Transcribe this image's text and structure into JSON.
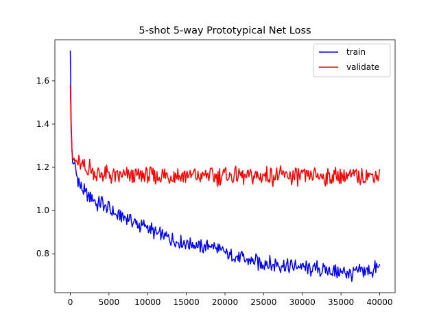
{
  "chart_data": {
    "type": "line",
    "title": "5-shot 5-way Prototypical Net Loss",
    "xlabel": "",
    "ylabel": "",
    "xlim": [
      -2000,
      42000
    ],
    "ylim": [
      0.62,
      1.79
    ],
    "xticks": [
      0,
      5000,
      10000,
      15000,
      20000,
      25000,
      30000,
      35000,
      40000
    ],
    "xtick_labels": [
      "0",
      "5000",
      "10000",
      "15000",
      "20000",
      "25000",
      "30000",
      "35000",
      "40000"
    ],
    "yticks": [
      0.8,
      1.0,
      1.2,
      1.4,
      1.6
    ],
    "ytick_labels": [
      "0.8",
      "1.0",
      "1.2",
      "1.4",
      "1.6"
    ],
    "grid": false,
    "legend_position": "top-right",
    "series": [
      {
        "name": "train",
        "color": "#0000ff",
        "x": [
          0,
          100,
          200,
          300,
          500,
          800,
          1200,
          1600,
          2000,
          2500,
          3000,
          3500,
          4000,
          4500,
          5000,
          5500,
          6000,
          7000,
          8000,
          9000,
          10000,
          11000,
          12000,
          13000,
          14000,
          15000,
          16000,
          17000,
          18000,
          19000,
          20000,
          21000,
          22000,
          23000,
          24000,
          25000,
          26000,
          27000,
          28000,
          29000,
          30000,
          31000,
          32000,
          33000,
          34000,
          35000,
          36000,
          37000,
          38000,
          39000,
          40000
        ],
        "y": [
          1.74,
          1.42,
          1.29,
          1.22,
          1.21,
          1.17,
          1.12,
          1.1,
          1.08,
          1.06,
          1.05,
          1.03,
          1.04,
          1.01,
          1.01,
          0.99,
          0.98,
          0.97,
          0.95,
          0.93,
          0.92,
          0.9,
          0.88,
          0.87,
          0.86,
          0.85,
          0.84,
          0.83,
          0.84,
          0.82,
          0.8,
          0.79,
          0.78,
          0.77,
          0.76,
          0.76,
          0.75,
          0.75,
          0.74,
          0.74,
          0.74,
          0.73,
          0.73,
          0.72,
          0.72,
          0.72,
          0.71,
          0.71,
          0.72,
          0.72,
          0.74
        ]
      },
      {
        "name": "validate",
        "color": "#ff0000",
        "x": [
          0,
          100,
          200,
          300,
          500,
          800,
          1200,
          1600,
          2000,
          2500,
          3000,
          3500,
          4000,
          4500,
          5000,
          5500,
          6000,
          7000,
          8000,
          9000,
          10000,
          11000,
          12000,
          13000,
          14000,
          15000,
          16000,
          17000,
          18000,
          19000,
          20000,
          21000,
          22000,
          23000,
          24000,
          25000,
          26000,
          27000,
          28000,
          29000,
          30000,
          31000,
          32000,
          33000,
          34000,
          35000,
          36000,
          37000,
          38000,
          39000,
          40000
        ],
        "y": [
          1.58,
          1.38,
          1.28,
          1.24,
          1.23,
          1.22,
          1.21,
          1.2,
          1.19,
          1.2,
          1.18,
          1.17,
          1.17,
          1.16,
          1.17,
          1.16,
          1.16,
          1.16,
          1.16,
          1.16,
          1.16,
          1.16,
          1.16,
          1.16,
          1.16,
          1.16,
          1.16,
          1.16,
          1.16,
          1.16,
          1.16,
          1.16,
          1.16,
          1.16,
          1.16,
          1.16,
          1.16,
          1.16,
          1.16,
          1.16,
          1.16,
          1.16,
          1.16,
          1.16,
          1.16,
          1.16,
          1.16,
          1.16,
          1.16,
          1.16,
          1.16
        ]
      }
    ]
  }
}
